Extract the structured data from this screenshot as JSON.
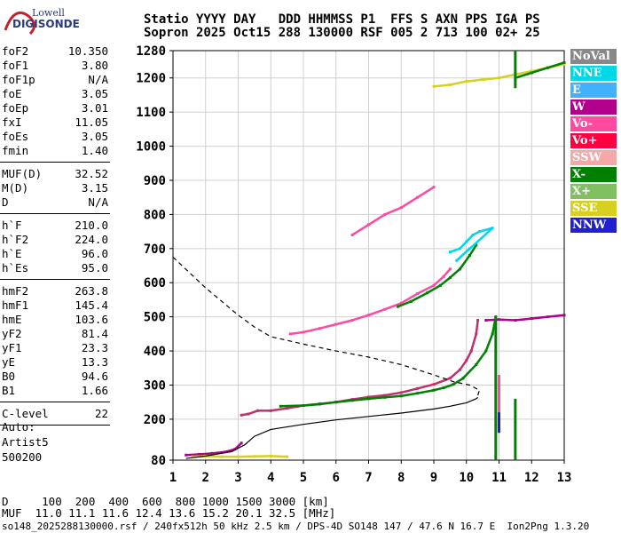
{
  "logo": {
    "top": "Lowell",
    "bottom": "DIGISONDE"
  },
  "header": {
    "line1": "Statio YYYY DAY   DDD HHMMSS P1  FFS S AXN PPS IGA PS",
    "line2": "Sopron 2025 Oct15 288 130000 RSF 005 2 713 100 02+ 25"
  },
  "params": [
    {
      "label": "foF2",
      "value": "10.350"
    },
    {
      "label": "foF1",
      "value": "3.80"
    },
    {
      "label": "foF1p",
      "value": "N/A"
    },
    {
      "label": "foE",
      "value": "3.05"
    },
    {
      "label": "foEp",
      "value": "3.01"
    },
    {
      "label": "fxI",
      "value": "11.05"
    },
    {
      "label": "foEs",
      "value": "3.05"
    },
    {
      "label": "fmin",
      "value": "1.40"
    },
    {
      "sep": true
    },
    {
      "label": "MUF(D)",
      "value": "32.52"
    },
    {
      "label": "M(D)",
      "value": "3.15"
    },
    {
      "label": "D",
      "value": "N/A"
    },
    {
      "sep": true
    },
    {
      "label": "h`F",
      "value": "210.0"
    },
    {
      "label": "h`F2",
      "value": "224.0"
    },
    {
      "label": "h`E",
      "value": "96.0"
    },
    {
      "label": "h`Es",
      "value": "95.0"
    },
    {
      "sep": true
    },
    {
      "label": "hmF2",
      "value": "263.8"
    },
    {
      "label": "hmF1",
      "value": "145.4"
    },
    {
      "label": "hmE",
      "value": "103.6"
    },
    {
      "label": "yF2",
      "value": "81.4"
    },
    {
      "label": "yF1",
      "value": "23.3"
    },
    {
      "label": "yE",
      "value": "13.3"
    },
    {
      "label": "B0",
      "value": "94.6"
    },
    {
      "label": "B1",
      "value": "1.66"
    },
    {
      "sep": true
    },
    {
      "label": "C-level",
      "value": "22"
    },
    {
      "sep": true
    }
  ],
  "auto": {
    "line1": "Auto:",
    "line2": "Artist5",
    "line3": "500200"
  },
  "legend": [
    {
      "label": "NoVal",
      "color": "#888888"
    },
    {
      "label": "NNE",
      "color": "#00d8e8"
    },
    {
      "label": "E",
      "color": "#40b0ff"
    },
    {
      "label": "W",
      "color": "#b0008c"
    },
    {
      "label": "Vo-",
      "color": "#ff4aa0"
    },
    {
      "label": "Vo+",
      "color": "#ff0040"
    },
    {
      "label": "SSW",
      "color": "#f4a8a8"
    },
    {
      "label": "X-",
      "color": "#008000"
    },
    {
      "label": "X+",
      "color": "#80c060"
    },
    {
      "label": "SSE",
      "color": "#d8d020"
    },
    {
      "label": "NNW",
      "color": "#2020d0"
    }
  ],
  "footer": {
    "line1": "D     100  200  400  600  800 1000 1500 3000 [km]",
    "line2": "MUF  11.0 11.1 11.6 12.4 13.6 15.2 20.1 32.5 [MHz]",
    "line3": "so148_2025288130000.rsf / 240fx512h 50 kHz 2.5 km / DPS-4D SO148 147 / 47.6 N 16.7 E  Ion2Png 1.3.20"
  },
  "chart_data": {
    "type": "scatter",
    "xlim": [
      1,
      13
    ],
    "ylim": [
      80,
      1280
    ],
    "xticks": [
      1,
      2,
      3,
      4,
      5,
      6,
      7,
      8,
      9,
      10,
      11,
      12,
      13
    ],
    "yticks": [
      80,
      200,
      300,
      400,
      500,
      600,
      700,
      800,
      900,
      1000,
      1100,
      1200,
      1280
    ],
    "grid": true,
    "legend_position": "right",
    "series": [
      {
        "name": "Vo-",
        "color": "#c0306a",
        "points": [
          [
            3.1,
            212
          ],
          [
            3.3,
            215
          ],
          [
            3.6,
            225
          ],
          [
            4.0,
            225
          ],
          [
            4.5,
            232
          ],
          [
            5.0,
            240
          ],
          [
            5.5,
            245
          ],
          [
            6.0,
            250
          ],
          [
            6.5,
            258
          ],
          [
            7.0,
            265
          ],
          [
            7.5,
            270
          ],
          [
            8.0,
            278
          ],
          [
            8.5,
            290
          ],
          [
            9.0,
            302
          ],
          [
            9.5,
            320
          ],
          [
            9.8,
            345
          ],
          [
            10.0,
            372
          ],
          [
            10.15,
            400
          ],
          [
            10.3,
            450
          ],
          [
            10.35,
            490
          ]
        ]
      },
      {
        "name": "X-",
        "color": "#008000",
        "points": [
          [
            4.3,
            238
          ],
          [
            5.0,
            240
          ],
          [
            5.5,
            244
          ],
          [
            6.0,
            250
          ],
          [
            6.5,
            255
          ],
          [
            7.0,
            260
          ],
          [
            7.5,
            264
          ],
          [
            8.0,
            268
          ],
          [
            8.5,
            276
          ],
          [
            9.0,
            285
          ],
          [
            9.3,
            292
          ],
          [
            9.6,
            302
          ],
          [
            9.9,
            320
          ],
          [
            10.3,
            360
          ],
          [
            10.6,
            400
          ],
          [
            10.8,
            450
          ],
          [
            10.9,
            500
          ]
        ]
      },
      {
        "name": "Vo- F2 second hop",
        "color": "#ff4aa0",
        "points": [
          [
            4.6,
            450
          ],
          [
            5.0,
            455
          ],
          [
            5.5,
            466
          ],
          [
            6.0,
            478
          ],
          [
            6.5,
            490
          ],
          [
            7.0,
            505
          ],
          [
            7.5,
            522
          ],
          [
            8.0,
            540
          ],
          [
            8.5,
            568
          ],
          [
            9.0,
            592
          ],
          [
            9.3,
            618
          ],
          [
            9.5,
            640
          ]
        ]
      },
      {
        "name": "X- F2 second hop",
        "color": "#008000",
        "points": [
          [
            7.9,
            530
          ],
          [
            8.3,
            545
          ],
          [
            8.8,
            570
          ],
          [
            9.2,
            592
          ],
          [
            9.5,
            615
          ],
          [
            9.8,
            640
          ],
          [
            10.1,
            680
          ],
          [
            10.3,
            710
          ]
        ]
      },
      {
        "name": "NNE",
        "color": "#00d8e8",
        "points": [
          [
            9.5,
            690
          ],
          [
            9.8,
            700
          ],
          [
            10.0,
            720
          ],
          [
            10.2,
            740
          ],
          [
            10.4,
            750
          ],
          [
            10.8,
            760
          ],
          [
            9.7,
            665
          ],
          [
            10.1,
            700
          ]
        ]
      },
      {
        "name": "Vo- F2 third hop",
        "color": "#ff4aa0",
        "points": [
          [
            6.5,
            740
          ],
          [
            7.0,
            770
          ],
          [
            7.5,
            800
          ],
          [
            8.0,
            820
          ],
          [
            8.5,
            850
          ],
          [
            9.0,
            880
          ]
        ]
      },
      {
        "name": "E layer low",
        "color": "#b0008c",
        "points": [
          [
            1.4,
            95
          ],
          [
            1.8,
            97
          ],
          [
            2.2,
            100
          ],
          [
            2.6,
            104
          ],
          [
            2.9,
            112
          ],
          [
            3.1,
            130
          ]
        ]
      },
      {
        "name": "SSE",
        "color": "#d8d020",
        "points": [
          [
            1.6,
            90
          ],
          [
            2.0,
            92
          ],
          [
            2.5,
            90
          ],
          [
            3.0,
            90
          ],
          [
            3.5,
            91
          ],
          [
            4.0,
            92
          ],
          [
            4.5,
            90
          ]
        ]
      },
      {
        "name": "Es top",
        "color": "#d8d020",
        "points": [
          [
            9.0,
            1175
          ],
          [
            9.5,
            1180
          ],
          [
            10.0,
            1190
          ],
          [
            10.5,
            1195
          ],
          [
            11.0,
            1200
          ],
          [
            11.5,
            1210
          ],
          [
            12.0,
            1220
          ],
          [
            12.5,
            1230
          ],
          [
            13.0,
            1240
          ]
        ]
      },
      {
        "name": "X- top",
        "color": "#008000",
        "points": [
          [
            11.5,
            1200
          ],
          [
            12.0,
            1215
          ],
          [
            12.5,
            1230
          ],
          [
            13.0,
            1245
          ]
        ]
      },
      {
        "name": "W far",
        "color": "#b0008c",
        "points": [
          [
            10.6,
            490
          ],
          [
            11.0,
            492
          ],
          [
            11.5,
            490
          ],
          [
            12.0,
            495
          ],
          [
            12.5,
            500
          ],
          [
            13.0,
            505
          ]
        ]
      }
    ],
    "lines": [
      {
        "name": "profile",
        "style": "solid",
        "points": [
          [
            1.4,
            85
          ],
          [
            2.0,
            92
          ],
          [
            2.8,
            105
          ],
          [
            3.2,
            125
          ],
          [
            3.5,
            150
          ],
          [
            4.0,
            170
          ],
          [
            5.0,
            185
          ],
          [
            6.0,
            198
          ],
          [
            7.0,
            208
          ],
          [
            8.0,
            218
          ],
          [
            9.0,
            230
          ],
          [
            9.5,
            238
          ],
          [
            10.0,
            248
          ],
          [
            10.3,
            260
          ],
          [
            10.35,
            264
          ]
        ]
      },
      {
        "name": "muf-curve",
        "style": "dashed",
        "points": [
          [
            1.0,
            675
          ],
          [
            1.5,
            630
          ],
          [
            2.0,
            585
          ],
          [
            2.5,
            545
          ],
          [
            3.0,
            505
          ],
          [
            3.5,
            470
          ],
          [
            4.0,
            442
          ],
          [
            5.0,
            420
          ],
          [
            6.0,
            400
          ],
          [
            7.0,
            382
          ],
          [
            8.0,
            360
          ],
          [
            9.0,
            330
          ],
          [
            9.6,
            310
          ],
          [
            10.1,
            300
          ],
          [
            10.4,
            285
          ],
          [
            10.35,
            270
          ]
        ]
      }
    ],
    "vlines": [
      {
        "x": 11.0,
        "y": [
          160,
          330
        ],
        "color": "#2020d0"
      },
      {
        "x": 11.0,
        "y": [
          220,
          330
        ],
        "color": "#ff4aa0"
      },
      {
        "x": 11.5,
        "y": [
          80,
          260
        ],
        "color": "#008000"
      },
      {
        "x": 11.5,
        "y": [
          1170,
          1280
        ],
        "color": "#008000"
      },
      {
        "x": 10.9,
        "y": [
          80,
          500
        ],
        "color": "#008000"
      }
    ]
  }
}
